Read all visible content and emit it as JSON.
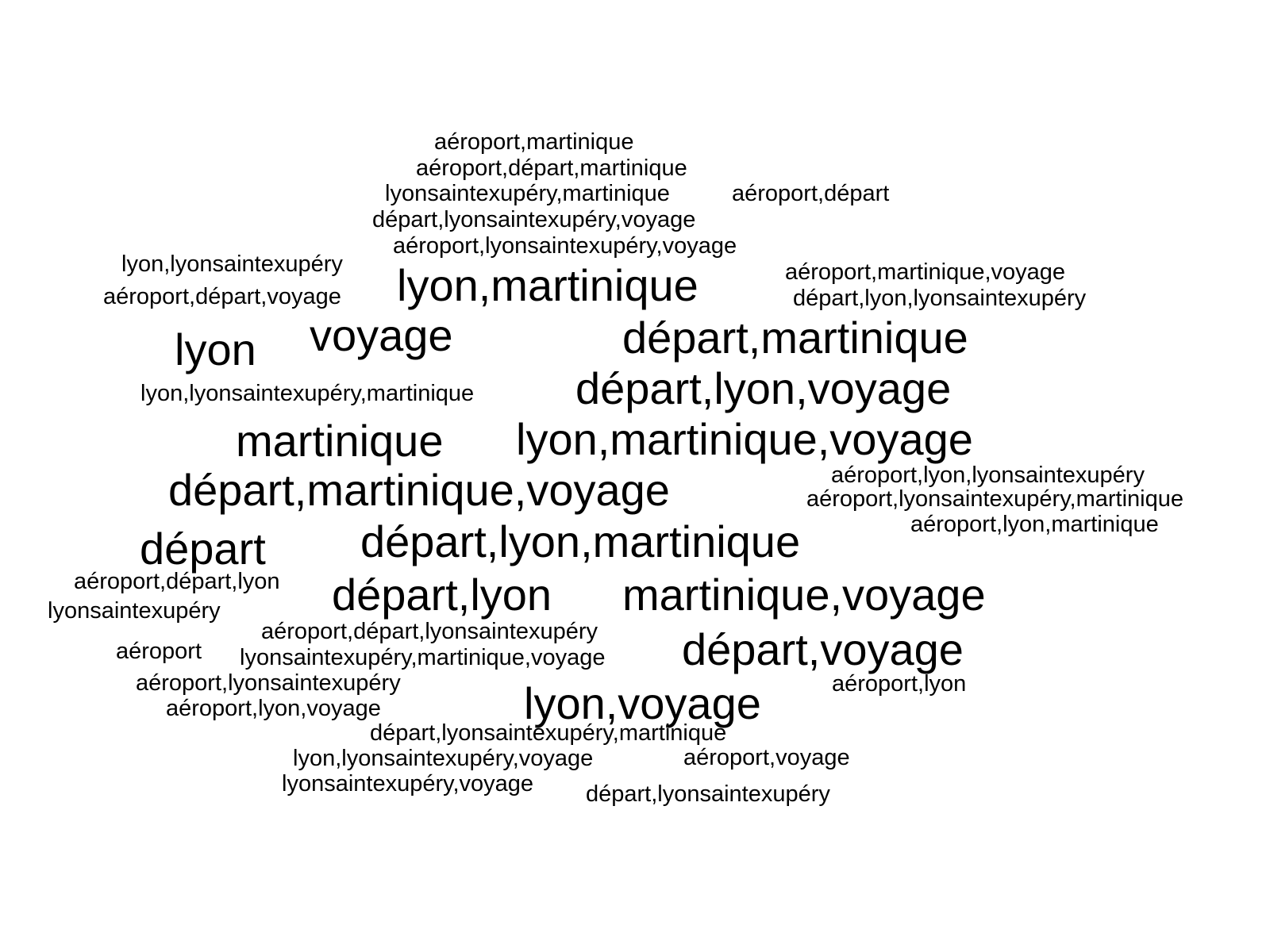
{
  "text_color": "#000000",
  "background_color": "#ffffff",
  "words": [
    "aéroport,martinique",
    "aéroport,départ,martinique",
    "lyonsaintexupéry,martinique",
    "aéroport,départ",
    "départ,lyonsaintexupéry,voyage",
    "aéroport,lyonsaintexupéry,voyage",
    "lyon,lyonsaintexupéry",
    "lyon,martinique",
    "aéroport,martinique,voyage",
    "aéroport,départ,voyage",
    "départ,lyon,lyonsaintexupéry",
    "voyage",
    "départ,martinique",
    "lyon",
    "départ,lyon,voyage",
    "lyon,lyonsaintexupéry,martinique",
    "martinique",
    "lyon,martinique,voyage",
    "aéroport,lyon,lyonsaintexupéry",
    "départ,martinique,voyage",
    "aéroport,lyonsaintexupéry,martinique",
    "aéroport,lyon,martinique",
    "départ",
    "départ,lyon,martinique",
    "aéroport,départ,lyon",
    "départ,lyon",
    "martinique,voyage",
    "lyonsaintexupéry",
    "aéroport,départ,lyonsaintexupéry",
    "départ,voyage",
    "aéroport",
    "lyonsaintexupéry,martinique,voyage",
    "aéroport,lyonsaintexupéry",
    "aéroport,lyon",
    "lyon,voyage",
    "aéroport,lyon,voyage",
    "départ,lyonsaintexupéry,martinique",
    "lyon,lyonsaintexupéry,voyage",
    "aéroport,voyage",
    "lyonsaintexupéry,voyage",
    "départ,lyonsaintexupéry"
  ]
}
